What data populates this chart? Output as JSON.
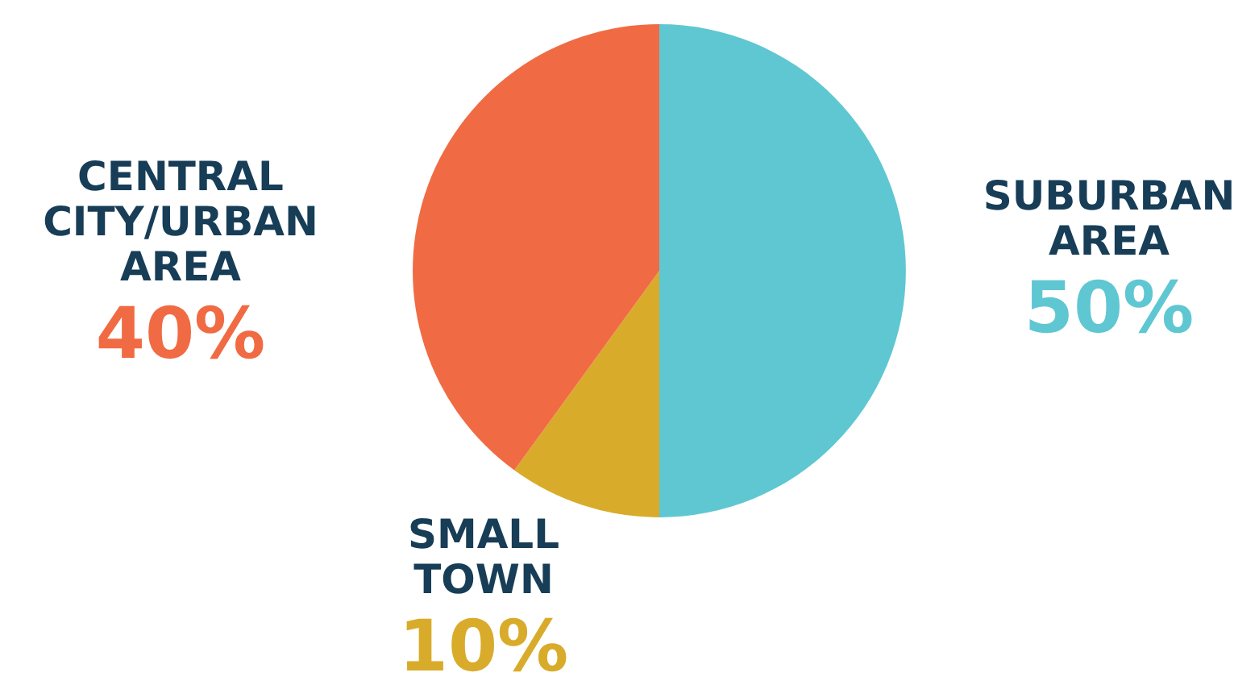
{
  "chart_data": {
    "type": "pie",
    "categories": [
      "SUBURBAN AREA",
      "SMALL TOWN",
      "CENTRAL CITY/URBAN AREA"
    ],
    "values": [
      50,
      10,
      40
    ],
    "value_labels": [
      "50%",
      "10%",
      "40%"
    ],
    "colors": [
      "#5fc7d2",
      "#d9ab2a",
      "#f06b43"
    ],
    "legend": false
  }
}
